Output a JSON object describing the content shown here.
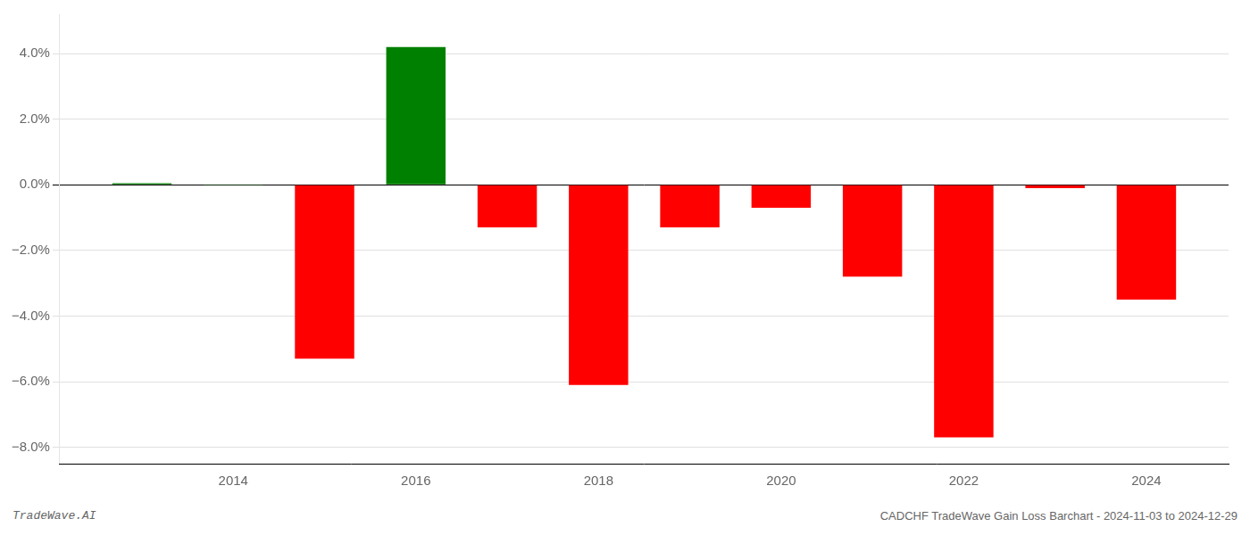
{
  "chart_data": {
    "type": "bar",
    "x": [
      2013,
      2014,
      2015,
      2016,
      2017,
      2018,
      2019,
      2020,
      2021,
      2022,
      2023,
      2024
    ],
    "values": [
      0.05,
      -0.02,
      -5.3,
      4.2,
      -1.3,
      -6.1,
      -1.3,
      -0.7,
      -2.8,
      -7.7,
      -0.1,
      -3.5
    ],
    "colors": [
      "#008000",
      "#008000",
      "#ff0000",
      "#008000",
      "#ff0000",
      "#ff0000",
      "#ff0000",
      "#ff0000",
      "#ff0000",
      "#ff0000",
      "#ff0000",
      "#ff0000"
    ],
    "xlim": [
      2012.1,
      2024.9
    ],
    "xticks": [
      2014,
      2016,
      2018,
      2020,
      2022,
      2024
    ],
    "ylim": [
      -8.5,
      5.2
    ],
    "yticks": [
      {
        "value": -8.0,
        "label": "−8.0%"
      },
      {
        "value": -6.0,
        "label": "−6.0%"
      },
      {
        "value": -4.0,
        "label": "−4.0%"
      },
      {
        "value": -2.0,
        "label": "−2.0%"
      },
      {
        "value": 0.0,
        "label": "0.0%"
      },
      {
        "value": 2.0,
        "label": "2.0%"
      },
      {
        "value": 4.0,
        "label": "4.0%"
      }
    ],
    "grid": true,
    "annotations": [
      "TradeWave.AI",
      "CADCHF TradeWave Gain Loss Barchart - 2024-11-03 to 2024-12-29"
    ]
  }
}
